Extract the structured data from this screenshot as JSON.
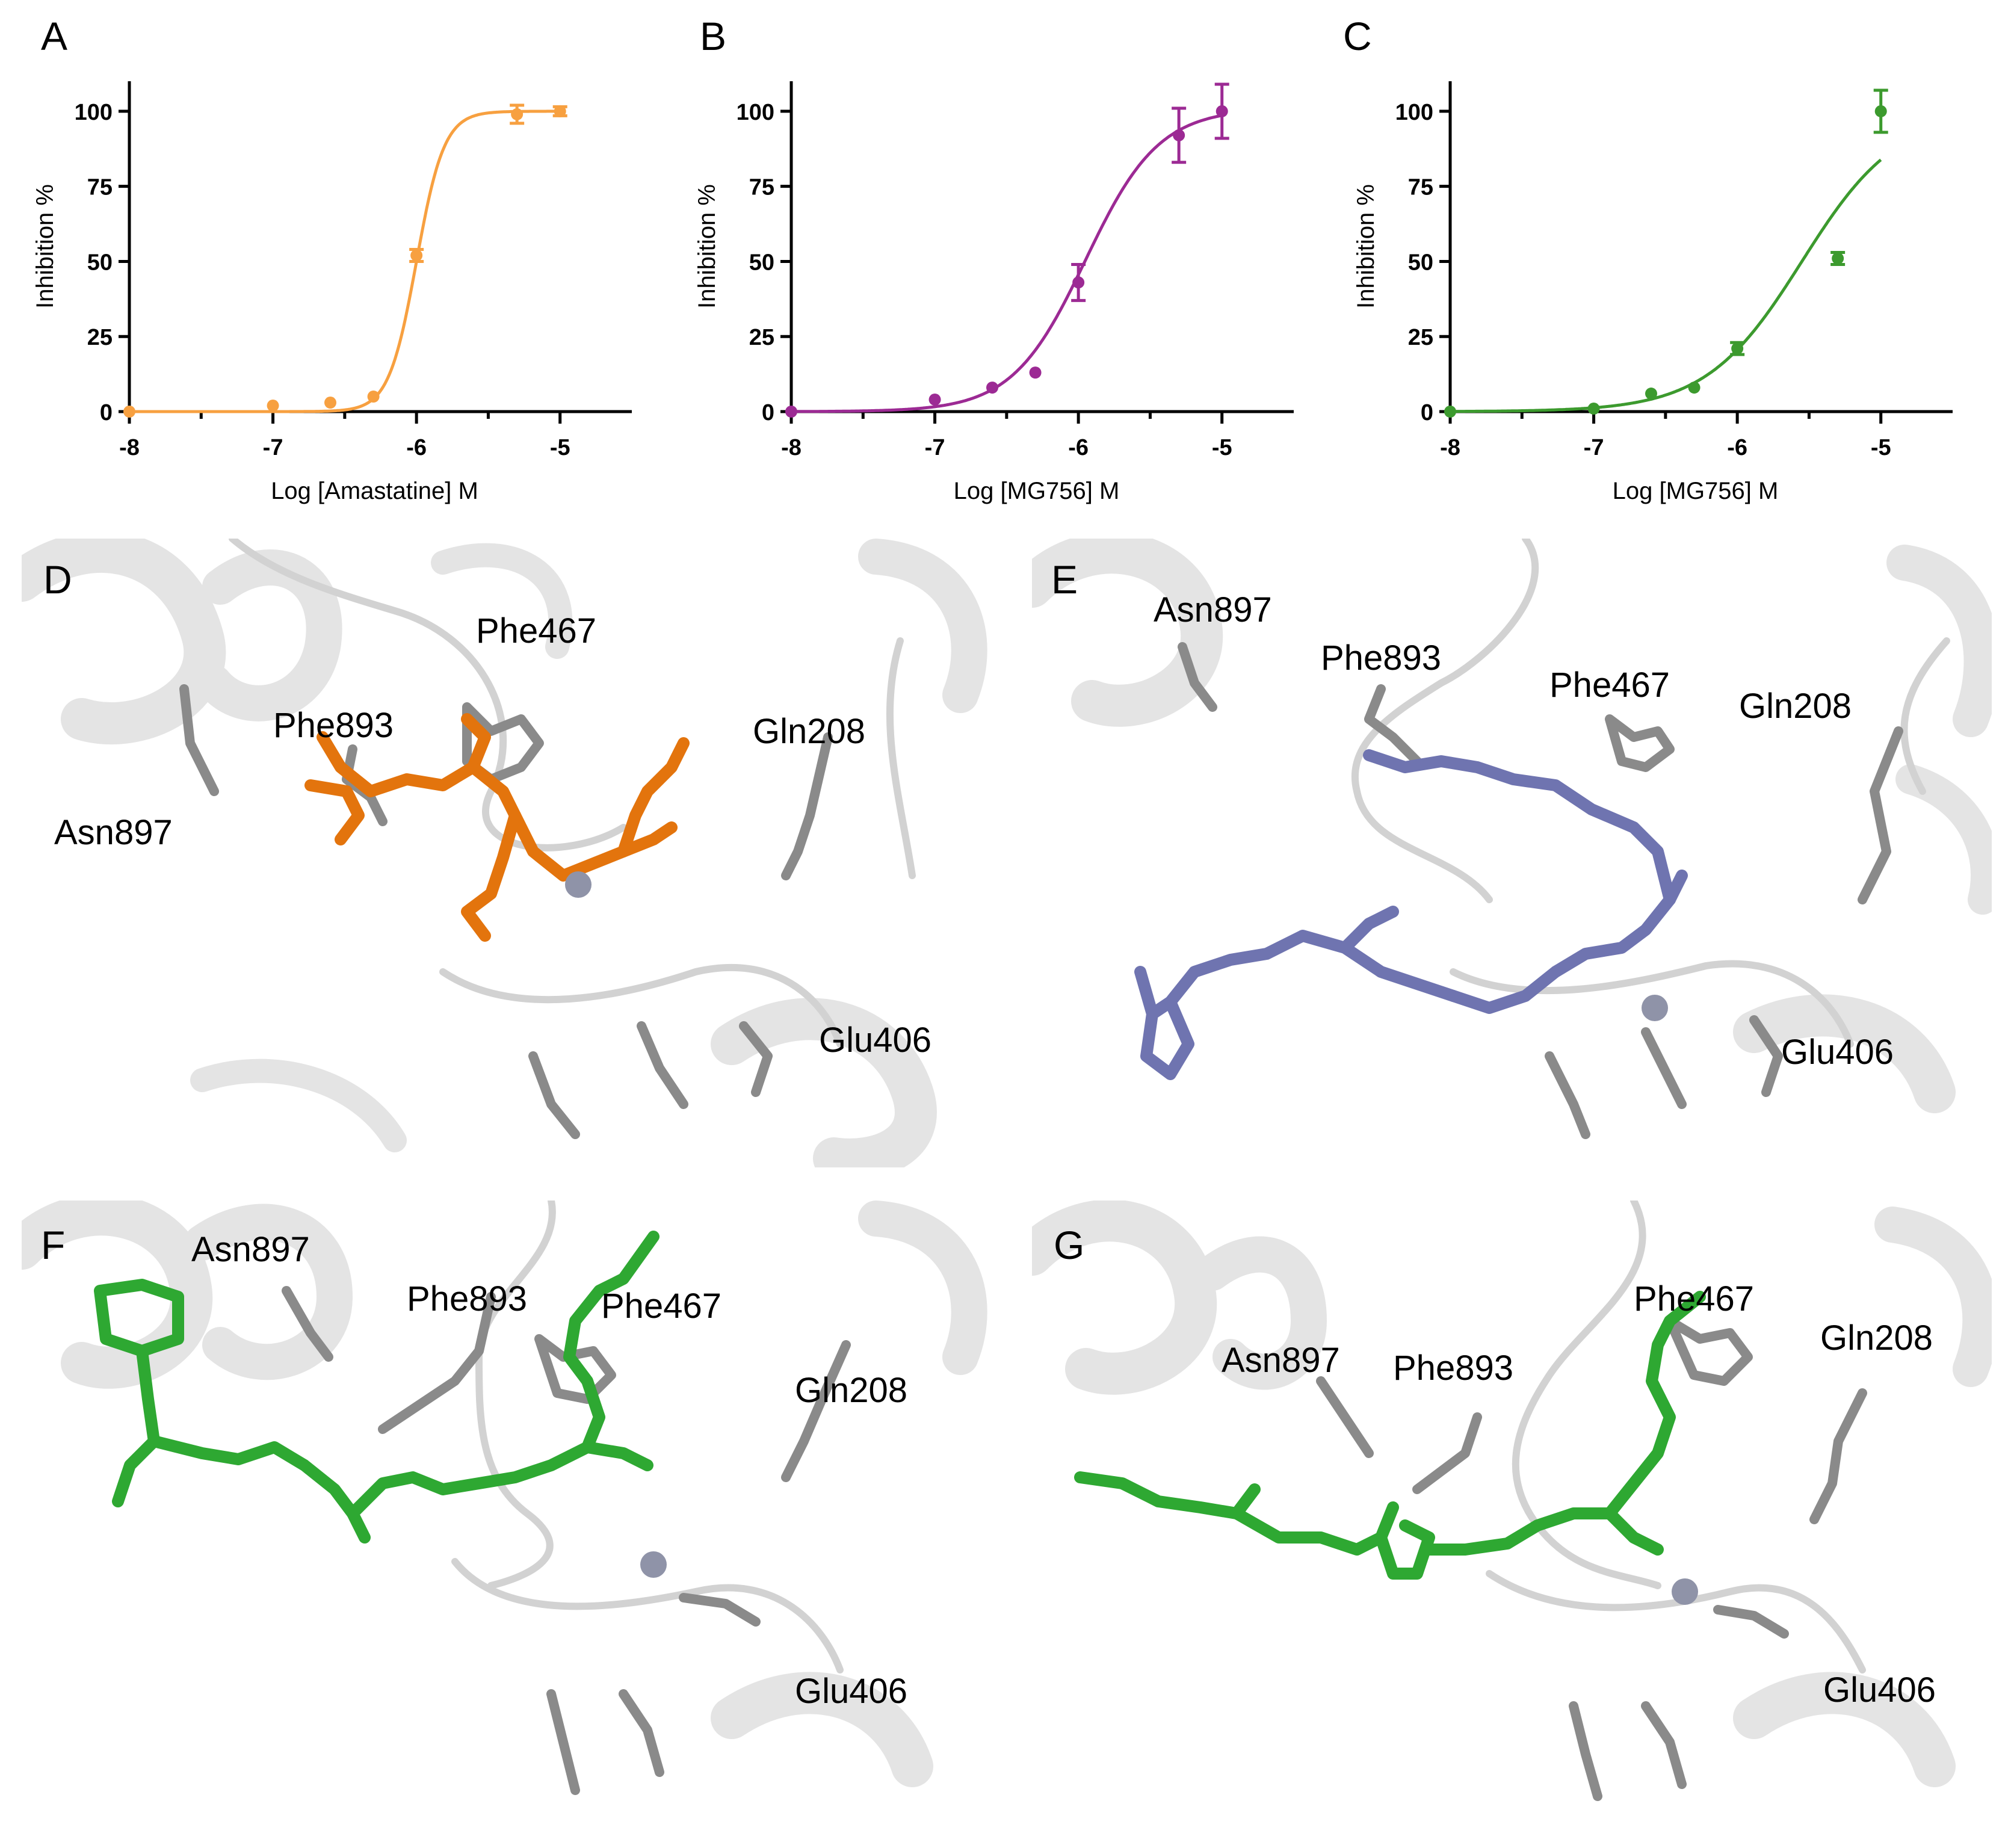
{
  "panels": {
    "A": "A",
    "B": "B",
    "C": "C",
    "D": "D",
    "E": "E",
    "F": "F",
    "G": "G"
  },
  "colors": {
    "A": "#f7a040",
    "B": "#9c2a94",
    "C": "#3c9a2e",
    "orange": "#ee7a10",
    "slate": "#6f74b0",
    "green": "#2ea832",
    "grey": "#808080"
  },
  "chart_data": [
    {
      "panel": "A",
      "type": "scatter",
      "title": "",
      "xlabel": "Log [Amastatine] M",
      "ylabel": "Inhibition %",
      "xlim": [
        -8,
        -4.5
      ],
      "ylim": [
        0,
        110
      ],
      "xticks": [
        "-8",
        "-7",
        "-6",
        "-5"
      ],
      "yticks": [
        "0",
        "25",
        "50",
        "75",
        "100"
      ],
      "series": [
        {
          "name": "Amastatine",
          "x": [
            -8,
            -7,
            -6.6,
            -6.3,
            -6,
            -5.3,
            -5
          ],
          "y": [
            0,
            2,
            3,
            5,
            52,
            99,
            100
          ],
          "err": [
            0,
            0,
            0,
            0,
            2,
            3,
            1.5
          ]
        }
      ],
      "fit": {
        "model": "4PL",
        "bottom": 0,
        "top": 100,
        "logEC50": -6.0,
        "hill": 4.5,
        "x_range": [
          -8,
          -5
        ]
      }
    },
    {
      "panel": "B",
      "type": "scatter",
      "title": "",
      "xlabel": "Log [MG756] M",
      "ylabel": "Inhibition %",
      "xlim": [
        -8,
        -4.5
      ],
      "ylim": [
        0,
        110
      ],
      "xticks": [
        "-8",
        "-7",
        "-6",
        "-5"
      ],
      "yticks": [
        "0",
        "25",
        "50",
        "75",
        "100"
      ],
      "series": [
        {
          "name": "MG756",
          "x": [
            -8,
            -7,
            -6.6,
            -6.3,
            -6,
            -5.3,
            -5
          ],
          "y": [
            0,
            4,
            8,
            13,
            43,
            92,
            100
          ],
          "err": [
            0,
            0,
            0,
            0,
            6,
            9,
            9
          ]
        }
      ],
      "fit": {
        "model": "4PL",
        "bottom": 0,
        "top": 101,
        "logEC50": -5.95,
        "hill": 1.7,
        "x_range": [
          -8,
          -5
        ]
      }
    },
    {
      "panel": "C",
      "type": "scatter",
      "title": "",
      "xlabel": "Log [MG756] M",
      "ylabel": "Inhibition %",
      "xlim": [
        -8,
        -4.5
      ],
      "ylim": [
        0,
        110
      ],
      "xticks": [
        "-8",
        "-7",
        "-6",
        "-5"
      ],
      "yticks": [
        "0",
        "25",
        "50",
        "75",
        "100"
      ],
      "series": [
        {
          "name": "MG756",
          "x": [
            -8,
            -7,
            -6.6,
            -6.3,
            -6,
            -5.3,
            -5
          ],
          "y": [
            0,
            1,
            6,
            8,
            21,
            51,
            100
          ],
          "err": [
            0,
            0,
            0,
            0,
            2,
            2,
            7
          ]
        }
      ],
      "fit": {
        "model": "4PL",
        "bottom": 0,
        "top": 100,
        "logEC50": -5.55,
        "hill": 1.3,
        "x_range": [
          -8,
          -5
        ]
      }
    }
  ],
  "structures": {
    "D": {
      "labels": [
        "Phe467",
        "Phe893",
        "Gln208",
        "Asn897",
        "Glu406"
      ]
    },
    "E": {
      "labels": [
        "Asn897",
        "Phe893",
        "Phe467",
        "Gln208",
        "Glu406"
      ]
    },
    "F": {
      "labels": [
        "Asn897",
        "Phe893",
        "Phe467",
        "Gln208",
        "Glu406"
      ]
    },
    "G": {
      "labels": [
        "Phe467",
        "Gln208",
        "Asn897",
        "Phe893",
        "Glu406"
      ]
    }
  }
}
